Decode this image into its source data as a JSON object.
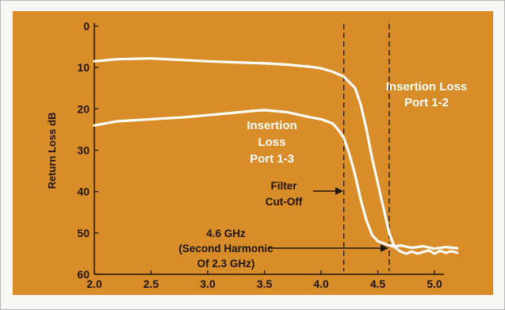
{
  "chart_data": {
    "type": "line",
    "title": "",
    "xlabel": "",
    "ylabel": "Return Loss dB",
    "xlim": [
      2.0,
      5.3
    ],
    "ylim": [
      0,
      60
    ],
    "y_inverted": true,
    "grid": false,
    "x_ticks": [
      "2.0",
      "2.5",
      "3.0",
      "3.5",
      "4.0",
      "4.5",
      "5.0"
    ],
    "y_ticks": [
      "0",
      "10",
      "20",
      "30",
      "40",
      "50",
      "60"
    ],
    "series": [
      {
        "name": "Insertion Loss Port 1-2",
        "x": [
          2.0,
          2.2,
          2.5,
          2.8,
          3.0,
          3.3,
          3.5,
          3.7,
          3.9,
          4.0,
          4.1,
          4.2,
          4.3,
          4.35,
          4.4,
          4.45,
          4.5,
          4.55,
          4.6,
          4.65,
          4.7,
          4.75,
          4.8,
          4.85,
          4.9,
          4.95,
          5.0,
          5.05,
          5.1,
          5.15,
          5.2
        ],
        "y": [
          8.5,
          8.0,
          7.8,
          8.2,
          8.5,
          8.8,
          9.0,
          9.3,
          9.8,
          10.2,
          11.0,
          12.2,
          15.0,
          19.0,
          25.0,
          32.0,
          38.0,
          44.0,
          50.0,
          53.5,
          54.5,
          55.0,
          54.5,
          55.0,
          54.6,
          54.2,
          55.0,
          54.3,
          54.8,
          54.4,
          54.8
        ]
      },
      {
        "name": "Insertion Loss Port 1-3",
        "x": [
          2.0,
          2.2,
          2.5,
          2.8,
          3.0,
          3.2,
          3.4,
          3.5,
          3.7,
          3.9,
          4.0,
          4.1,
          4.15,
          4.2,
          4.25,
          4.3,
          4.35,
          4.4,
          4.45,
          4.5,
          4.55,
          4.6,
          4.65,
          4.7,
          4.8,
          4.9,
          5.0,
          5.1,
          5.2
        ],
        "y": [
          24.0,
          23.0,
          22.5,
          22.0,
          21.5,
          21.0,
          20.5,
          20.3,
          20.8,
          22.0,
          22.5,
          23.5,
          25.0,
          27.0,
          31.0,
          36.0,
          42.0,
          47.0,
          50.5,
          52.0,
          52.5,
          53.0,
          53.3,
          53.0,
          53.6,
          53.2,
          53.8,
          53.4,
          53.7
        ]
      }
    ],
    "markers": [
      {
        "name": "Filter Cut-Off",
        "x": 4.2
      },
      {
        "name": "4.6 GHz (Second Harmonic Of 2.3 GHz)",
        "x": 4.6
      }
    ],
    "annotations": [
      {
        "lines": [
          "Insertion Loss",
          "Port 1-2"
        ]
      },
      {
        "lines": [
          "Insertion",
          "Loss",
          "Port 1-3"
        ]
      },
      {
        "lines": [
          "Filter",
          "Cut-Off"
        ]
      },
      {
        "lines": [
          "4.6 GHz",
          "(Second Harmonic",
          "Of 2.3 GHz)"
        ]
      }
    ]
  },
  "colors": {
    "background": "#d88d28",
    "trace": "#ffffff",
    "text": "#1e1410",
    "marker": "#1e1410"
  }
}
